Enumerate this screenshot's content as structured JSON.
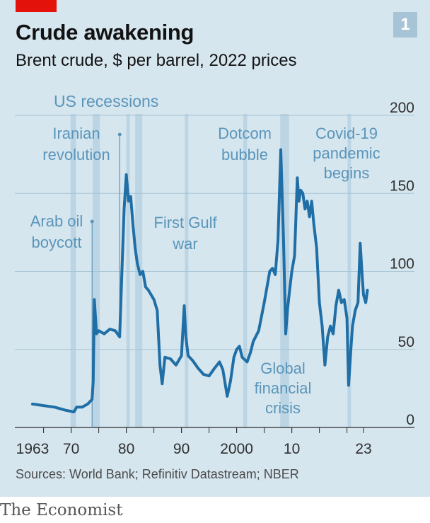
{
  "header": {
    "title": "Crude awakening",
    "subtitle": "Brent crude, $ per barrel, 2022 prices",
    "chart_number": "1"
  },
  "footer": {
    "sources": "Sources: World Bank; Refinitiv Datastream; NBER",
    "brand": "The Economist"
  },
  "colors": {
    "background": "#d6e6ef",
    "line": "#1f6ea6",
    "recession_band": "#bcd5e4",
    "annotation": "#5a95ba",
    "brand_red": "#e3120b"
  },
  "chart_data": {
    "type": "line",
    "title": "Crude awakening",
    "subtitle": "Brent crude, $ per barrel, 2022 prices",
    "ylim": [
      0,
      200
    ],
    "xlim": [
      1963,
      2023
    ],
    "y_ticks": [
      0,
      50,
      100,
      150,
      200
    ],
    "x_ticks": [
      {
        "value": 1963,
        "label": "1963"
      },
      {
        "value": 1970,
        "label": "70"
      },
      {
        "value": 1980,
        "label": "80"
      },
      {
        "value": 1990,
        "label": "90"
      },
      {
        "value": 2000,
        "label": "2000"
      },
      {
        "value": 2010,
        "label": "10"
      },
      {
        "value": 2023,
        "label": "23"
      }
    ],
    "y_axis_side": "right",
    "grid": true,
    "recession_label": "US recessions",
    "recessions": [
      [
        1969.9,
        1970.9
      ],
      [
        1973.9,
        1975.2
      ],
      [
        1980.0,
        1980.6
      ],
      [
        1981.6,
        1982.9
      ],
      [
        1990.6,
        1991.2
      ],
      [
        2001.2,
        2001.9
      ],
      [
        2007.9,
        2009.5
      ],
      [
        2020.1,
        2020.4
      ]
    ],
    "series": [
      {
        "x": [
          1963,
          1965,
          1967,
          1969,
          1970.5,
          1971,
          1972,
          1973,
          1973.8,
          1974.0,
          1974.2,
          1974.6,
          1975,
          1976,
          1977,
          1978,
          1978.8,
          1979.2,
          1979.6,
          1980.0,
          1980.4,
          1980.8,
          1981.2,
          1981.6,
          1982,
          1982.5,
          1983,
          1983.5,
          1984,
          1984.5,
          1985,
          1985.6,
          1986.1,
          1986.5,
          1987,
          1988,
          1989,
          1990,
          1990.5,
          1990.8,
          1991.2,
          1992,
          1993,
          1994,
          1995,
          1996,
          1996.9,
          1997.5,
          1998.3,
          1998.9,
          1999.5,
          2000,
          2000.5,
          2001,
          2001.9,
          2002.5,
          2003,
          2004,
          2005,
          2005.5,
          2006,
          2006.5,
          2007,
          2007.5,
          2008.0,
          2008.5,
          2008.9,
          2009.2,
          2009.6,
          2010,
          2010.5,
          2011.0,
          2011.3,
          2011.6,
          2012,
          2012.4,
          2012.8,
          2013.2,
          2013.6,
          2014,
          2014.5,
          2015.0,
          2015.5,
          2016.0,
          2016.5,
          2017,
          2017.5,
          2018.0,
          2018.5,
          2019,
          2019.5,
          2020.0,
          2020.3,
          2020.7,
          2021,
          2021.5,
          2022.0,
          2022.4,
          2022.8,
          2023.0,
          2023.4,
          2023.7
        ],
        "values": [
          15,
          14,
          13,
          11,
          10,
          13,
          13,
          15,
          18,
          30,
          82,
          60,
          62,
          60,
          63,
          62,
          58,
          100,
          140,
          162,
          145,
          148,
          130,
          115,
          105,
          98,
          100,
          90,
          88,
          85,
          82,
          75,
          40,
          28,
          45,
          44,
          40,
          46,
          78,
          58,
          46,
          43,
          38,
          34,
          33,
          38,
          42,
          37,
          20,
          30,
          45,
          50,
          52,
          45,
          42,
          48,
          55,
          62,
          80,
          90,
          100,
          102,
          98,
          120,
          178,
          120,
          60,
          75,
          88,
          100,
          110,
          160,
          145,
          152,
          150,
          140,
          145,
          135,
          145,
          130,
          115,
          80,
          65,
          40,
          58,
          65,
          60,
          78,
          88,
          80,
          82,
          70,
          27,
          50,
          65,
          75,
          80,
          118,
          95,
          85,
          80,
          88
        ]
      }
    ],
    "annotations": [
      {
        "text": [
          "Arab oil",
          "boycott"
        ],
        "year": 1973.8
      },
      {
        "text": [
          "Iranian",
          "revolution"
        ],
        "year": 1978.8
      },
      {
        "text": [
          "First Gulf",
          "war"
        ]
      },
      {
        "text": [
          "Dotcom",
          "bubble"
        ]
      },
      {
        "text": [
          "Global",
          "financial",
          "crisis"
        ]
      },
      {
        "text": [
          "Covid-19",
          "pandemic",
          "begins"
        ]
      }
    ]
  }
}
